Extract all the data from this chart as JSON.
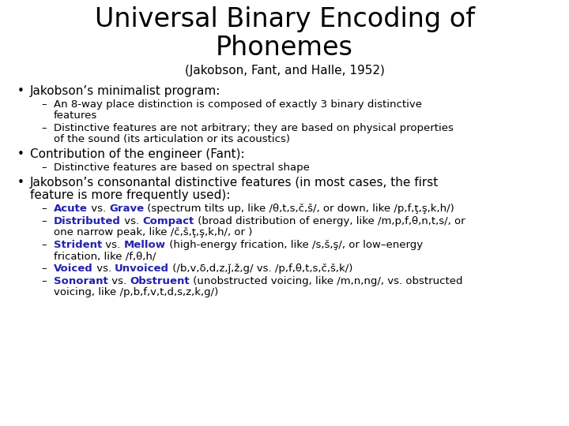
{
  "title_line1": "Universal Binary Encoding of",
  "title_line2": "Phonemes",
  "subtitle": "(Jakobson, Fant, and Halle, 1952)",
  "bg_color": "#ffffff",
  "black": "#000000",
  "blue": "#2222aa",
  "title_fontsize": 24,
  "subtitle_fontsize": 11,
  "body_fs": 9.5,
  "bullet_fs": 11
}
